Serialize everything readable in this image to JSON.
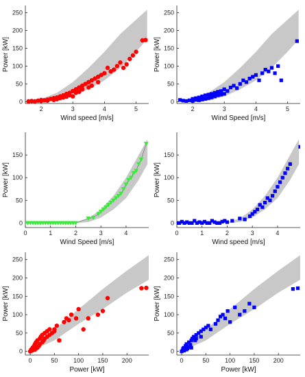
{
  "chart_data": [
    {
      "type": "scatter",
      "xlabel": "Wind speed [m/s]",
      "ylabel": "Power [kW]",
      "xlim": [
        1.5,
        5.4
      ],
      "ylim": [
        -5,
        270
      ],
      "xticks": [
        2,
        3,
        4,
        5
      ],
      "yticks": [
        0,
        50,
        100,
        150,
        200,
        250
      ],
      "band": {
        "x": [
          2.0,
          2.5,
          3.0,
          3.5,
          4.0,
          4.5,
          5.0,
          5.35
        ],
        "lower": [
          0,
          3,
          15,
          35,
          60,
          95,
          140,
          175
        ],
        "upper": [
          8,
          25,
          55,
          95,
          140,
          190,
          230,
          258
        ]
      },
      "series": [
        {
          "color": "#ff0000",
          "marker": "circle",
          "x": [
            1.6,
            1.7,
            1.8,
            1.9,
            2.0,
            2.0,
            2.1,
            2.2,
            2.2,
            2.3,
            2.4,
            2.4,
            2.5,
            2.5,
            2.6,
            2.6,
            2.7,
            2.7,
            2.8,
            2.8,
            2.9,
            2.9,
            3.0,
            3.0,
            3.1,
            3.1,
            3.2,
            3.2,
            3.3,
            3.3,
            3.4,
            3.5,
            3.5,
            3.6,
            3.6,
            3.7,
            3.8,
            3.8,
            3.9,
            4.0,
            4.1,
            4.2,
            4.3,
            4.4,
            4.5,
            4.6,
            4.7,
            4.8,
            4.9,
            5.0,
            5.2,
            5.3
          ],
          "y": [
            1,
            2,
            1,
            3,
            2,
            5,
            4,
            6,
            3,
            8,
            10,
            5,
            12,
            7,
            15,
            10,
            18,
            12,
            22,
            14,
            25,
            18,
            30,
            15,
            35,
            25,
            40,
            28,
            45,
            35,
            50,
            55,
            40,
            60,
            45,
            65,
            70,
            55,
            75,
            80,
            95,
            85,
            90,
            100,
            110,
            95,
            105,
            120,
            130,
            140,
            172,
            173
          ]
        }
      ]
    },
    {
      "type": "scatter",
      "xlabel": "Wind Speed [m/s]",
      "ylabel": "Power [kW]",
      "xlim": [
        1.5,
        5.4
      ],
      "ylim": [
        -5,
        270
      ],
      "xticks": [
        2,
        3,
        4,
        5
      ],
      "yticks": [
        0,
        50,
        100,
        150,
        200,
        250
      ],
      "band": {
        "x": [
          2.0,
          2.5,
          3.0,
          3.5,
          4.0,
          4.5,
          5.0,
          5.35
        ],
        "lower": [
          0,
          3,
          15,
          35,
          60,
          95,
          140,
          175
        ],
        "upper": [
          8,
          25,
          55,
          95,
          140,
          190,
          230,
          258
        ]
      },
      "series": [
        {
          "color": "#0000ff",
          "marker": "square",
          "x": [
            1.6,
            1.7,
            1.8,
            1.9,
            2.0,
            2.0,
            2.1,
            2.1,
            2.2,
            2.2,
            2.3,
            2.3,
            2.4,
            2.4,
            2.5,
            2.5,
            2.6,
            2.6,
            2.7,
            2.7,
            2.8,
            2.8,
            2.9,
            2.9,
            3.0,
            3.0,
            3.1,
            3.2,
            3.3,
            3.4,
            3.5,
            3.6,
            3.7,
            3.8,
            3.9,
            4.0,
            4.1,
            4.2,
            4.3,
            4.4,
            4.5,
            4.6,
            4.7,
            4.8,
            5.3
          ],
          "y": [
            5,
            3,
            2,
            4,
            8,
            2,
            10,
            5,
            12,
            4,
            15,
            6,
            18,
            8,
            20,
            10,
            22,
            12,
            25,
            15,
            28,
            18,
            30,
            20,
            35,
            22,
            30,
            40,
            45,
            38,
            50,
            60,
            55,
            65,
            70,
            75,
            60,
            80,
            90,
            85,
            95,
            80,
            100,
            60,
            170
          ]
        }
      ]
    },
    {
      "type": "scatter",
      "xlabel": "Wind Speed [m/s]",
      "ylabel": "Power [kW]",
      "xlim": [
        0,
        4.9
      ],
      "ylim": [
        -10,
        200
      ],
      "xticks": [
        0,
        1,
        2,
        3,
        4
      ],
      "yticks": [
        0,
        50,
        100,
        150
      ],
      "band": {
        "x": [
          2.0,
          2.5,
          3.0,
          3.5,
          4.0,
          4.5,
          4.85
        ],
        "lower": [
          0,
          2,
          12,
          30,
          55,
          95,
          130
        ],
        "upper": [
          2,
          10,
          30,
          60,
          100,
          150,
          185
        ]
      },
      "series": [
        {
          "color": "#33ee33",
          "marker": "triangle-down",
          "line": true,
          "x": [
            0.0,
            0.1,
            0.2,
            0.3,
            0.4,
            0.5,
            0.6,
            0.7,
            0.8,
            0.9,
            1.0,
            1.1,
            1.2,
            1.3,
            1.4,
            1.5,
            1.6,
            1.7,
            1.8,
            1.9,
            2.0,
            2.5,
            2.7,
            2.9,
            3.0,
            3.1,
            3.2,
            3.3,
            3.4,
            3.5,
            3.6,
            3.7,
            3.8,
            3.9,
            4.0,
            4.1,
            4.2,
            4.3,
            4.4,
            4.5,
            4.6,
            4.8
          ],
          "y": [
            0,
            0,
            0,
            0,
            0,
            0,
            0,
            0,
            0,
            0,
            0,
            0,
            0,
            0,
            0,
            0,
            0,
            0,
            0,
            0,
            0,
            10,
            12,
            20,
            25,
            30,
            35,
            40,
            45,
            50,
            55,
            60,
            65,
            75,
            85,
            95,
            100,
            110,
            115,
            130,
            140,
            175
          ]
        }
      ]
    },
    {
      "type": "scatter",
      "xlabel": "Wind speed [m/s]",
      "ylabel": "Power [kW]",
      "xlim": [
        0,
        4.9
      ],
      "ylim": [
        -10,
        200
      ],
      "xticks": [
        0,
        1,
        2,
        3,
        4
      ],
      "yticks": [
        0,
        50,
        100,
        150
      ],
      "band": {
        "x": [
          2.0,
          2.5,
          3.0,
          3.5,
          4.0,
          4.5,
          4.85
        ],
        "lower": [
          0,
          2,
          12,
          30,
          55,
          95,
          130
        ],
        "upper": [
          2,
          10,
          30,
          60,
          100,
          150,
          185
        ]
      },
      "series": [
        {
          "color": "#0000ff",
          "marker": "square",
          "x": [
            0.0,
            0.1,
            0.2,
            0.3,
            0.4,
            0.5,
            0.6,
            0.7,
            0.8,
            0.9,
            1.0,
            1.1,
            1.2,
            1.3,
            1.4,
            1.5,
            1.6,
            1.7,
            1.8,
            1.9,
            2.0,
            2.2,
            2.5,
            2.7,
            2.9,
            3.0,
            3.1,
            3.2,
            3.3,
            3.4,
            3.5,
            3.6,
            3.7,
            3.8,
            3.9,
            4.0,
            4.1,
            4.2,
            4.3,
            4.4,
            4.5,
            4.9
          ],
          "y": [
            0,
            0,
            3,
            0,
            2,
            0,
            0,
            5,
            0,
            2,
            0,
            3,
            0,
            0,
            5,
            2,
            0,
            0,
            3,
            5,
            2,
            5,
            10,
            8,
            15,
            20,
            25,
            30,
            40,
            35,
            45,
            55,
            50,
            60,
            70,
            80,
            90,
            100,
            110,
            120,
            130,
            168
          ]
        }
      ]
    },
    {
      "type": "scatter",
      "xlabel": "Power [kW]",
      "ylabel": "Power [kW]",
      "xlim": [
        -10,
        245
      ],
      "ylim": [
        -10,
        270
      ],
      "xticks": [
        0,
        50,
        100,
        150,
        200
      ],
      "yticks": [
        0,
        50,
        100,
        150,
        200,
        250
      ],
      "band": {
        "x": [
          0,
          50,
          100,
          150,
          200,
          245
        ],
        "lower": [
          0,
          30,
          75,
          115,
          160,
          195
        ],
        "upper": [
          5,
          60,
          115,
          170,
          220,
          262
        ]
      },
      "series": [
        {
          "color": "#ff0000",
          "marker": "circle",
          "x": [
            0,
            2,
            3,
            5,
            5,
            8,
            10,
            10,
            12,
            12,
            15,
            15,
            18,
            20,
            20,
            22,
            25,
            25,
            28,
            30,
            30,
            35,
            35,
            40,
            40,
            45,
            50,
            50,
            55,
            60,
            70,
            75,
            80,
            85,
            95,
            100,
            110,
            120,
            140,
            150,
            160,
            230,
            240
          ],
          "y": [
            0,
            5,
            2,
            10,
            3,
            15,
            5,
            20,
            8,
            25,
            10,
            30,
            15,
            35,
            20,
            40,
            25,
            45,
            30,
            50,
            35,
            55,
            40,
            60,
            45,
            50,
            55,
            60,
            70,
            30,
            80,
            90,
            85,
            100,
            90,
            115,
            60,
            90,
            100,
            110,
            145,
            172,
            173
          ]
        }
      ]
    },
    {
      "type": "scatter",
      "xlabel": "Power [kW]",
      "ylabel": "Power [kW]",
      "xlim": [
        -10,
        245
      ],
      "ylim": [
        -10,
        270
      ],
      "xticks": [
        0,
        50,
        100,
        150,
        200
      ],
      "yticks": [
        0,
        50,
        100,
        150,
        200,
        250
      ],
      "band": {
        "x": [
          0,
          50,
          100,
          150,
          200,
          245
        ],
        "lower": [
          0,
          30,
          75,
          115,
          160,
          195
        ],
        "upper": [
          5,
          60,
          115,
          170,
          220,
          262
        ]
      },
      "series": [
        {
          "color": "#0000ff",
          "marker": "square",
          "x": [
            0,
            2,
            3,
            5,
            5,
            8,
            10,
            10,
            12,
            15,
            15,
            18,
            20,
            20,
            22,
            25,
            28,
            30,
            30,
            35,
            40,
            40,
            45,
            50,
            55,
            60,
            70,
            75,
            80,
            85,
            90,
            95,
            100,
            110,
            120,
            130,
            140,
            150,
            230,
            240
          ],
          "y": [
            0,
            3,
            8,
            10,
            2,
            15,
            5,
            20,
            8,
            12,
            25,
            18,
            30,
            10,
            35,
            40,
            30,
            45,
            35,
            50,
            55,
            40,
            60,
            65,
            70,
            60,
            75,
            85,
            95,
            100,
            90,
            110,
            80,
            120,
            100,
            110,
            130,
            120,
            170,
            172
          ]
        }
      ]
    }
  ]
}
